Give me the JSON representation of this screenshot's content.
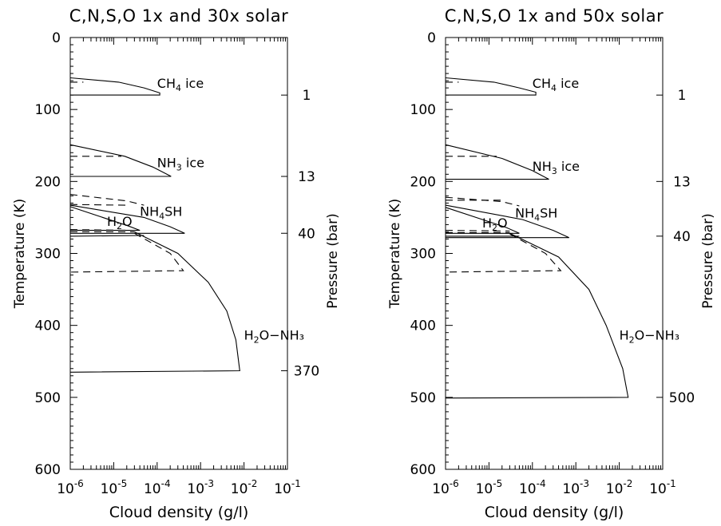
{
  "chart_data": [
    {
      "type": "line",
      "title": "C,N,S,O 1x and 30x solar",
      "xlabel": "Cloud density (g/l)",
      "ylabel": "Temperature (K)",
      "ylabel_right": "Pressure (bar)",
      "xscale": "log",
      "xlim": [
        1e-06,
        0.1
      ],
      "ylim": [
        600,
        0
      ],
      "x_tick_labels": [
        {
          "base": "10",
          "exp": "-6"
        },
        {
          "base": "10",
          "exp": "-5"
        },
        {
          "base": "10",
          "exp": "-4"
        },
        {
          "base": "10",
          "exp": "-3"
        },
        {
          "base": "10",
          "exp": "-2"
        },
        {
          "base": "10",
          "exp": "-1"
        }
      ],
      "y_ticks": [
        0,
        100,
        200,
        300,
        400,
        500,
        600
      ],
      "y_tick_labels": [
        "0",
        "100",
        "200",
        "300",
        "400",
        "500",
        "600"
      ],
      "pressure_ticks": [
        {
          "temperature": 80,
          "label": "1"
        },
        {
          "temperature": 193,
          "label": "13"
        },
        {
          "temperature": 272,
          "label": "40"
        },
        {
          "temperature": 463,
          "label": "370"
        }
      ],
      "cloud_labels": [
        {
          "main": "CH",
          "sub": "4",
          "tail": " ice",
          "x": 0.0001,
          "y": 70
        },
        {
          "main": "NH",
          "sub": "3",
          "tail": " ice",
          "x": 0.0001,
          "y": 180
        },
        {
          "main": "NH",
          "sub": "4",
          "tail": "SH",
          "x": 4e-05,
          "y": 248
        },
        {
          "main": "H",
          "sub": "2",
          "tail": "O",
          "x": 7e-06,
          "y": 262
        },
        {
          "main": "H",
          "sub": "2",
          "tail": "O−NH₃",
          "x": 0.01,
          "y": 420
        }
      ],
      "series": [
        {
          "style": "solid",
          "points": [
            [
              1e-06,
              56
            ],
            [
              1.3e-05,
              62
            ],
            [
              5e-05,
              70
            ],
            [
              0.000115,
              77
            ],
            [
              0.000115,
              80
            ],
            [
              1e-06,
              80
            ]
          ]
        },
        {
          "style": "dashed",
          "points": [
            [
              1e-06,
              62
            ],
            [
              2e-06,
              62
            ]
          ]
        },
        {
          "style": "solid",
          "points": [
            [
              1e-06,
              149
            ],
            [
              1.8e-05,
              165
            ],
            [
              8e-05,
              180
            ],
            [
              0.00021,
              193
            ],
            [
              1e-06,
              193
            ]
          ]
        },
        {
          "style": "dashed",
          "points": [
            [
              1e-06,
              165
            ],
            [
              1.5e-05,
              165
            ]
          ]
        },
        {
          "style": "dashed",
          "points": [
            [
              1e-06,
              218
            ],
            [
              2e-05,
              227
            ],
            [
              5e-05,
              233
            ]
          ]
        },
        {
          "style": "dashed",
          "points": [
            [
              1e-06,
              232
            ],
            [
              2e-05,
              233
            ]
          ]
        },
        {
          "style": "solid",
          "points": [
            [
              1e-06,
              233
            ],
            [
              5e-05,
              250
            ],
            [
              0.0002,
              263
            ],
            [
              0.00043,
              272
            ],
            [
              1e-06,
              272
            ]
          ]
        },
        {
          "style": "solid",
          "points": [
            [
              1e-06,
              235
            ],
            [
              7e-06,
              252
            ],
            [
              2.2e-05,
              262
            ],
            [
              4e-05,
              268
            ],
            [
              1e-06,
              268
            ]
          ]
        },
        {
          "style": "dashed",
          "points": [
            [
              1e-06,
              267
            ],
            [
              3e-05,
              268
            ]
          ]
        },
        {
          "style": "dashed",
          "points": [
            [
              1e-06,
              270
            ],
            [
              3e-05,
              270
            ]
          ]
        },
        {
          "style": "solid",
          "points": [
            [
              1e-06,
              276
            ],
            [
              5e-05,
              275
            ]
          ]
        },
        {
          "style": "solid",
          "points": [
            [
              3e-05,
              270
            ],
            [
              0.0003,
              300
            ],
            [
              0.0015,
              340
            ],
            [
              0.004,
              380
            ],
            [
              0.0065,
              420
            ],
            [
              0.008,
              463
            ],
            [
              1e-06,
              465
            ]
          ]
        },
        {
          "style": "dashed",
          "points": [
            [
              3e-05,
              272
            ],
            [
              0.0002,
              300
            ],
            [
              0.0004,
              324
            ],
            [
              1e-06,
              326
            ]
          ]
        }
      ]
    },
    {
      "type": "line",
      "title": "C,N,S,O 1x and 50x solar",
      "xlabel": "Cloud density (g/l)",
      "ylabel": "Temperature (K)",
      "ylabel_right": "Pressure (bar)",
      "xscale": "log",
      "xlim": [
        1e-06,
        0.1
      ],
      "ylim": [
        600,
        0
      ],
      "x_tick_labels": [
        {
          "base": "10",
          "exp": "-6"
        },
        {
          "base": "10",
          "exp": "-5"
        },
        {
          "base": "10",
          "exp": "-4"
        },
        {
          "base": "10",
          "exp": "-3"
        },
        {
          "base": "10",
          "exp": "-2"
        },
        {
          "base": "10",
          "exp": "-1"
        }
      ],
      "y_ticks": [
        0,
        100,
        200,
        300,
        400,
        500,
        600
      ],
      "y_tick_labels": [
        "0",
        "100",
        "200",
        "300",
        "400",
        "500",
        "600"
      ],
      "pressure_ticks": [
        {
          "temperature": 80,
          "label": "1"
        },
        {
          "temperature": 200,
          "label": "13"
        },
        {
          "temperature": 276,
          "label": "40"
        },
        {
          "temperature": 500,
          "label": "500"
        }
      ],
      "cloud_labels": [
        {
          "main": "CH",
          "sub": "4",
          "tail": " ice",
          "x": 0.0001,
          "y": 70
        },
        {
          "main": "NH",
          "sub": "3",
          "tail": " ice",
          "x": 0.0001,
          "y": 185
        },
        {
          "main": "NH",
          "sub": "4",
          "tail": "SH",
          "x": 4e-05,
          "y": 250
        },
        {
          "main": "H",
          "sub": "2",
          "tail": "O",
          "x": 7e-06,
          "y": 264
        },
        {
          "main": "H",
          "sub": "2",
          "tail": "O−NH₃",
          "x": 0.01,
          "y": 420
        }
      ],
      "series": [
        {
          "style": "solid",
          "points": [
            [
              1e-06,
              56
            ],
            [
              1.3e-05,
              62
            ],
            [
              5e-05,
              70
            ],
            [
              0.00012,
              76
            ],
            [
              0.00012,
              80
            ],
            [
              1e-06,
              80
            ]
          ]
        },
        {
          "style": "dashed",
          "points": [
            [
              1e-06,
              62
            ],
            [
              2e-06,
              62
            ]
          ]
        },
        {
          "style": "solid",
          "points": [
            [
              1e-06,
              149
            ],
            [
              2e-05,
              168
            ],
            [
              0.0001,
              185
            ],
            [
              0.00024,
              197
            ],
            [
              1e-06,
              197
            ]
          ]
        },
        {
          "style": "dashed",
          "points": [
            [
              1e-06,
              165
            ],
            [
              1.5e-05,
              165
            ]
          ]
        },
        {
          "style": "dashed",
          "points": [
            [
              1e-06,
              222
            ],
            [
              2e-05,
              228
            ],
            [
              5e-05,
              234
            ]
          ]
        },
        {
          "style": "dashed",
          "points": [
            [
              1e-06,
              226
            ],
            [
              2e-05,
              226
            ]
          ]
        },
        {
          "style": "solid",
          "points": [
            [
              1e-06,
              233
            ],
            [
              6e-05,
              253
            ],
            [
              0.0003,
              268
            ],
            [
              0.0007,
              278
            ],
            [
              1e-06,
              278
            ]
          ]
        },
        {
          "style": "solid",
          "points": [
            [
              1e-06,
              236
            ],
            [
              8e-06,
              254
            ],
            [
              2.5e-05,
              264
            ],
            [
              5e-05,
              272
            ],
            [
              1e-06,
              272
            ]
          ]
        },
        {
          "style": "dashed",
          "points": [
            [
              1e-06,
              268
            ],
            [
              3e-05,
              269
            ]
          ]
        },
        {
          "style": "dashed",
          "points": [
            [
              1e-06,
              271
            ],
            [
              3e-05,
              271
            ]
          ]
        },
        {
          "style": "solid",
          "points": [
            [
              1e-06,
              276
            ],
            [
              5e-05,
              276
            ]
          ]
        },
        {
          "style": "solid",
          "points": [
            [
              3e-05,
              272
            ],
            [
              0.0004,
              305
            ],
            [
              0.002,
              350
            ],
            [
              0.005,
              400
            ],
            [
              0.012,
              460
            ],
            [
              0.016,
              500
            ],
            [
              1e-06,
              501
            ]
          ]
        },
        {
          "style": "dashed",
          "points": [
            [
              3e-05,
              273
            ],
            [
              0.0002,
              300
            ],
            [
              0.00045,
              324
            ],
            [
              1e-06,
              326
            ]
          ]
        }
      ]
    }
  ]
}
